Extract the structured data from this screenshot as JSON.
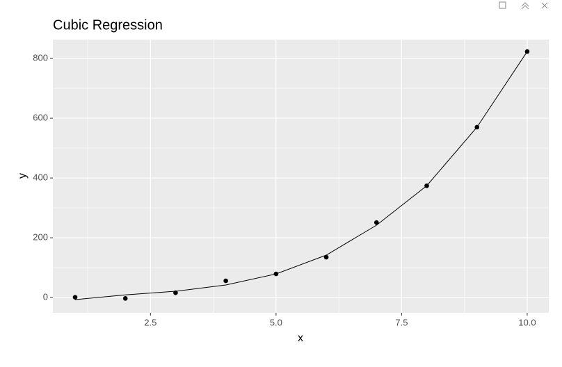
{
  "chart_data": {
    "type": "scatter",
    "title": "Cubic Regression",
    "x_label": "x",
    "y_label": "y",
    "x": [
      1,
      2,
      3,
      4,
      5,
      6,
      7,
      8,
      9,
      10
    ],
    "series": [
      {
        "style": "point",
        "color": "#000000",
        "values": [
          1,
          -3,
          16,
          56,
          79,
          135,
          251,
          374,
          570,
          823
        ]
      },
      {
        "style": "line",
        "color": "#000000",
        "values": [
          -7,
          9,
          21,
          42,
          79,
          142,
          242,
          374,
          570,
          823
        ]
      }
    ],
    "xlim": [
      0.557,
      10.43
    ],
    "ylim": [
      -51,
      863
    ],
    "xticks": [
      2.5,
      {
        "value": 5,
        "label": "5.0"
      },
      7.5,
      {
        "value": 10,
        "label": "10.0"
      }
    ],
    "yticks": [
      0,
      200,
      400,
      600,
      800
    ],
    "x_minor": [
      1.25,
      3.75,
      6.25,
      8.75
    ],
    "y_minor": [
      100,
      300,
      500,
      700
    ],
    "grid": true,
    "panel_color": "#ebebeb"
  }
}
